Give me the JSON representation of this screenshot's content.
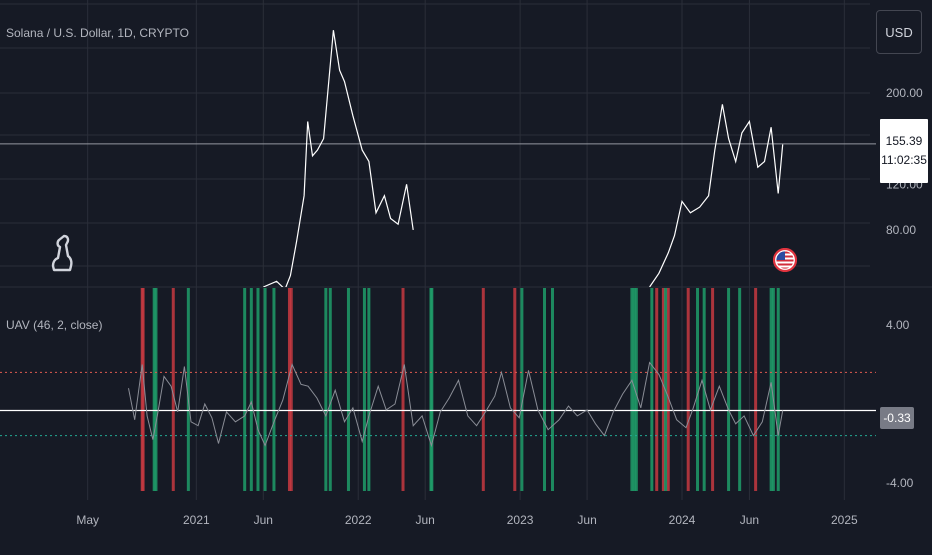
{
  "header": {
    "symbol_title": "Solana / U.S. Dollar, 1D, CRYPTO",
    "currency_button": "USD"
  },
  "price_tag": {
    "last_price": "155.39",
    "countdown": "11:02:35"
  },
  "indicator": {
    "title": "UAV (46, 2, close)",
    "last_value": "-0.33"
  },
  "icons": [
    "logo-icon",
    "us-flag-event-icon"
  ],
  "colors": {
    "background": "#161a25",
    "grid": "#2a2e39",
    "price_line": "#ffffff",
    "indicator_line": "#8a8d96",
    "sell_bar": "#c63a41",
    "buy_bar": "#1e9e6a",
    "upper_band": "#e05a4f",
    "lower_band": "#22ab94"
  },
  "chart_data": [
    {
      "type": "line",
      "pane": "price",
      "series": [
        {
          "name": "Solana / U.S. Dollar",
          "x": [
            "2021-06-01",
            "2021-07-01",
            "2021-07-20",
            "2021-08-01",
            "2021-08-15",
            "2021-09-01",
            "2021-09-09",
            "2021-09-20",
            "2021-10-01",
            "2021-10-15",
            "2021-11-06",
            "2021-11-20",
            "2021-12-01",
            "2021-12-20",
            "2022-01-10",
            "2022-01-25",
            "2022-02-10",
            "2022-03-01",
            "2022-03-15",
            "2022-04-01",
            "2022-04-20",
            "2022-05-05",
            "2023-10-20",
            "2023-11-10",
            "2023-12-01",
            "2023-12-15",
            "2024-01-01",
            "2024-01-20",
            "2024-02-10",
            "2024-03-01",
            "2024-03-15",
            "2024-04-01",
            "2024-04-15",
            "2024-05-01",
            "2024-05-15",
            "2024-06-01",
            "2024-06-20",
            "2024-07-05",
            "2024-07-20",
            "2024-08-05",
            "2024-08-15"
          ],
          "y": [
            30,
            35,
            28,
            40,
            70,
            110,
            175,
            145,
            150,
            160,
            255,
            220,
            210,
            180,
            150,
            140,
            95,
            110,
            90,
            85,
            120,
            80,
            30,
            42,
            60,
            75,
            105,
            95,
            100,
            110,
            150,
            190,
            160,
            140,
            165,
            175,
            135,
            140,
            170,
            112,
            155
          ]
        }
      ],
      "x_ticks": [
        "May",
        "2021",
        "Jun",
        "2022",
        "Jun",
        "2023",
        "Jun",
        "2024",
        "Jun",
        "2025"
      ],
      "y_ticks": [
        "200.00",
        "155.39",
        "120.00",
        "80.00"
      ],
      "last_price": 155.39
    },
    {
      "type": "line",
      "pane": "indicator",
      "title": "UAV (46, 2, close)",
      "series": [
        {
          "name": "UAV",
          "x": [
            "2020-08-01",
            "2020-08-15",
            "2020-09-01",
            "2020-09-12",
            "2020-09-25",
            "2020-10-05",
            "2020-10-20",
            "2020-11-05",
            "2020-11-20",
            "2020-12-05",
            "2020-12-20",
            "2021-01-05",
            "2021-01-20",
            "2021-02-05",
            "2021-02-20",
            "2021-03-10",
            "2021-03-30",
            "2021-04-20",
            "2021-05-05",
            "2021-05-20",
            "2021-06-05",
            "2021-06-25",
            "2021-07-15",
            "2021-08-05",
            "2021-08-25",
            "2021-09-10",
            "2021-09-30",
            "2021-10-20",
            "2021-11-10",
            "2021-12-01",
            "2021-12-20",
            "2022-01-10",
            "2022-01-25",
            "2022-02-15",
            "2022-03-05",
            "2022-03-25",
            "2022-04-15",
            "2022-05-05",
            "2022-05-25",
            "2022-06-15",
            "2022-07-05",
            "2022-07-25",
            "2022-08-15",
            "2022-09-05",
            "2022-09-25",
            "2022-10-15",
            "2022-11-05",
            "2022-11-20",
            "2022-12-10",
            "2022-12-30",
            "2023-01-20",
            "2023-02-10",
            "2023-03-05",
            "2023-03-30",
            "2023-04-20",
            "2023-05-10",
            "2023-06-01",
            "2023-06-20",
            "2023-07-10",
            "2023-07-30",
            "2023-08-20",
            "2023-09-10",
            "2023-09-30",
            "2023-10-20",
            "2023-11-10",
            "2023-11-30",
            "2023-12-20",
            "2024-01-10",
            "2024-01-25",
            "2024-02-15",
            "2024-03-05",
            "2024-03-25",
            "2024-04-15",
            "2024-05-01",
            "2024-05-20",
            "2024-06-10",
            "2024-06-30",
            "2024-07-20",
            "2024-08-05",
            "2024-08-15"
          ],
          "y": [
            0.8,
            -0.8,
            2.0,
            -0.6,
            -1.8,
            -0.6,
            1.4,
            0.9,
            -0.4,
            1.9,
            -0.9,
            -1.1,
            0.0,
            -0.7,
            -2.0,
            -0.4,
            -0.9,
            -0.6,
            0.1,
            -1.3,
            -2.1,
            -0.9,
            0.2,
            2.0,
            1.0,
            0.9,
            0.3,
            -0.6,
            0.7,
            -0.9,
            -0.2,
            -1.9,
            -0.6,
            0.9,
            -0.3,
            0.0,
            2.0,
            -1.1,
            -0.6,
            -2.1,
            -0.4,
            0.3,
            1.2,
            -0.6,
            -1.1,
            -0.4,
            0.4,
            1.6,
            -0.2,
            -0.7,
            1.7,
            -0.3,
            -1.3,
            -0.8,
            -0.1,
            -0.6,
            -0.3,
            -1.0,
            -1.6,
            -0.4,
            0.5,
            1.2,
            -0.2,
            2.1,
            1.5,
            0.4,
            -0.8,
            -1.2,
            -0.3,
            1.2,
            -0.3,
            0.9,
            -0.3,
            -1.0,
            -0.6,
            -1.6,
            -0.9,
            1.1,
            -1.6,
            -0.33
          ]
        }
      ],
      "upper_band": 1.6,
      "lower_band": -1.6,
      "zero_line": -0.33,
      "y_ticks": [
        "4.00",
        "-0.33",
        "-4.00"
      ],
      "y_range": [
        -4,
        4
      ],
      "signal_bars": {
        "sell": [
          "2020-09-01",
          "2020-09-03",
          "2020-11-10",
          "2021-07-30",
          "2021-08-03",
          "2022-04-12",
          "2022-10-10",
          "2022-12-20",
          "2023-11-05",
          "2023-11-20",
          "2023-12-01",
          "2024-01-15",
          "2024-03-10",
          "2024-06-15"
        ],
        "buy": [
          "2020-09-28",
          "2020-10-02",
          "2020-12-14",
          "2021-04-20",
          "2021-05-05",
          "2021-05-20",
          "2021-06-05",
          "2021-06-25",
          "2021-10-20",
          "2021-10-30",
          "2021-12-10",
          "2022-01-15",
          "2022-01-25",
          "2022-06-14",
          "2022-06-16",
          "2023-01-05",
          "2023-02-25",
          "2023-03-15",
          "2023-09-10",
          "2023-09-15",
          "2023-09-20",
          "2023-10-25",
          "2023-11-25",
          "2024-02-05",
          "2024-02-20",
          "2024-04-15",
          "2024-05-10",
          "2024-07-20",
          "2024-07-25",
          "2024-08-05"
        ]
      }
    }
  ]
}
